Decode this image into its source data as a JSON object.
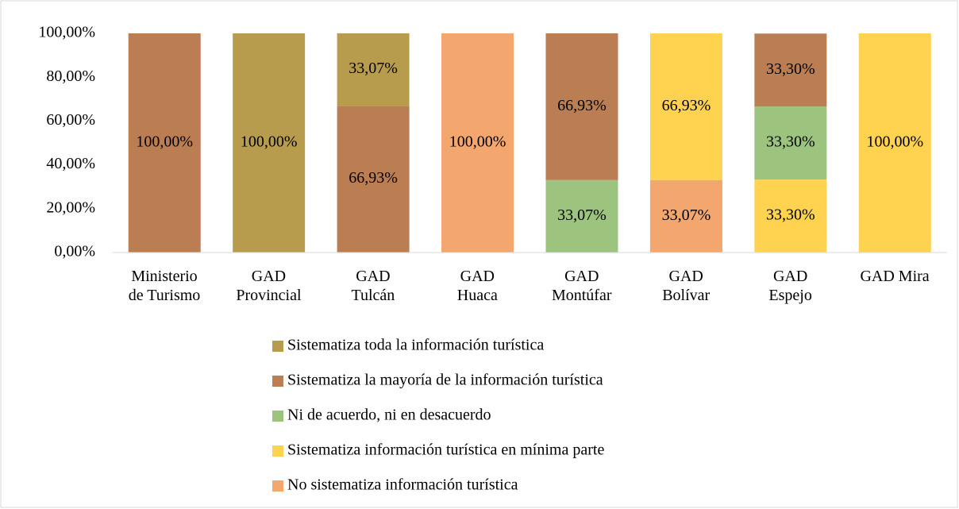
{
  "chart_data": {
    "type": "stacked_bar",
    "categories": [
      "Ministerio\nde Turismo",
      "GAD\nProvincial",
      "GAD\nTulcán",
      "GAD\nHuaca",
      "GAD\nMontúfar",
      "GAD\nBolívar",
      "GAD\nEspejo",
      "GAD Mira"
    ],
    "series": [
      {
        "name": "No sistematiza información turística",
        "color": "#f4a66f",
        "values": [
          null,
          null,
          null,
          100,
          null,
          33.07,
          null,
          null
        ],
        "value_labels": [
          null,
          null,
          null,
          "100,00%",
          null,
          "33,07%",
          null,
          null
        ]
      },
      {
        "name": "Sistematiza información turística en mínima parte",
        "color": "#ffd24f",
        "values": [
          null,
          null,
          null,
          null,
          null,
          66.93,
          33.3,
          100
        ],
        "value_labels": [
          null,
          null,
          null,
          null,
          null,
          "66,93%",
          "33,30%",
          "100,00%"
        ]
      },
      {
        "name": "Ni de acuerdo, ni en desacuerdo",
        "color": "#9dc47f",
        "values": [
          null,
          null,
          null,
          null,
          33.07,
          null,
          33.3,
          null
        ],
        "value_labels": [
          null,
          null,
          null,
          null,
          "33,07%",
          null,
          "33,30%",
          null
        ]
      },
      {
        "name": "Sistematiza la mayoría de la información turística",
        "color": "#bb7d52",
        "values": [
          100,
          null,
          66.93,
          null,
          66.93,
          null,
          33.3,
          null
        ],
        "value_labels": [
          "100,00%",
          null,
          "66,93%",
          null,
          "66,93%",
          null,
          "33,30%",
          null
        ]
      },
      {
        "name": "Sistematiza toda la información turística",
        "color": "#b89c4d",
        "values": [
          null,
          100,
          33.07,
          null,
          null,
          null,
          null,
          null
        ],
        "value_labels": [
          null,
          "100,00%",
          "33,07%",
          null,
          null,
          null,
          null,
          null
        ]
      }
    ],
    "ylim": [
      0,
      100
    ],
    "yticks": [
      {
        "value": 0,
        "label": "0,00%"
      },
      {
        "value": 20,
        "label": "20,00%"
      },
      {
        "value": 40,
        "label": "40,00%"
      },
      {
        "value": 60,
        "label": "60,00%"
      },
      {
        "value": 80,
        "label": "80,00%"
      },
      {
        "value": 100,
        "label": "100,00%"
      }
    ],
    "legend": "bottom"
  }
}
